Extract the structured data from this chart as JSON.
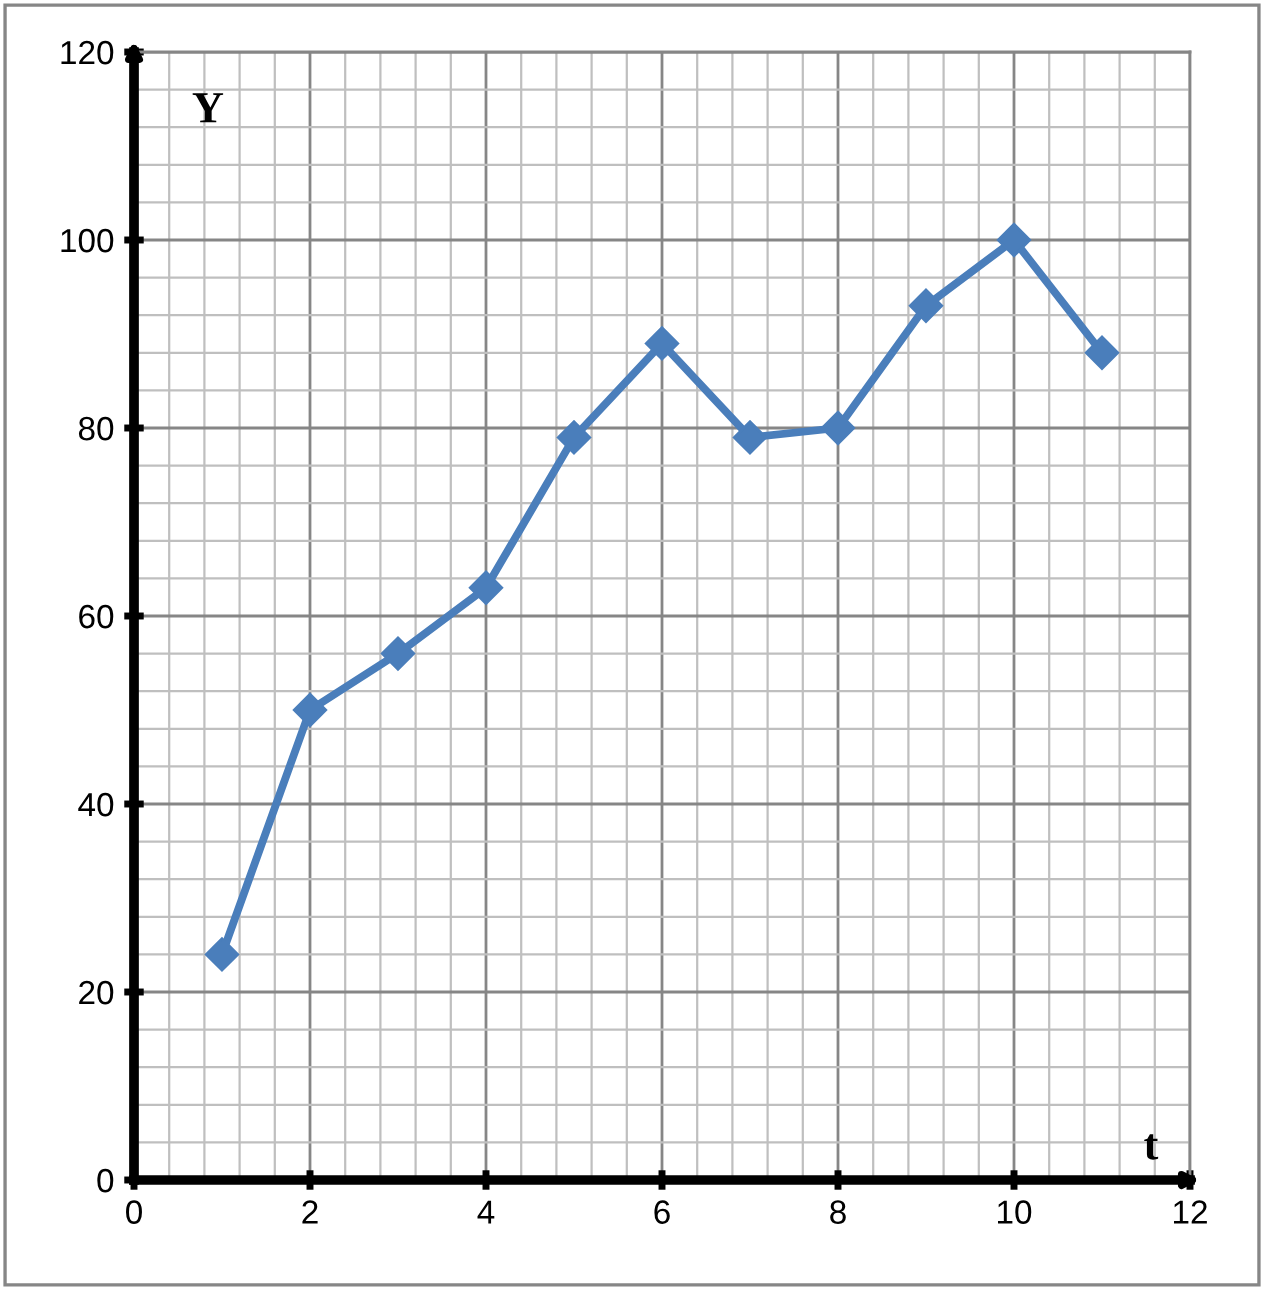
{
  "chart_data": {
    "type": "line",
    "xlabel": "t",
    "ylabel": "Y",
    "x": [
      1,
      2,
      3,
      4,
      5,
      6,
      7,
      8,
      9,
      10,
      11
    ],
    "series": [
      {
        "color": "#4a7ebb",
        "values": [
          24,
          50,
          56,
          63,
          79,
          89,
          79,
          80,
          93,
          100,
          88
        ]
      }
    ],
    "xlim": [
      0,
      12
    ],
    "ylim": [
      0,
      120
    ],
    "xticks": [
      0,
      2,
      4,
      6,
      8,
      10,
      12
    ],
    "yticks": [
      0,
      20,
      40,
      60,
      80,
      100,
      120
    ],
    "grid": true,
    "marker": "diamond",
    "line_style": "solid"
  }
}
